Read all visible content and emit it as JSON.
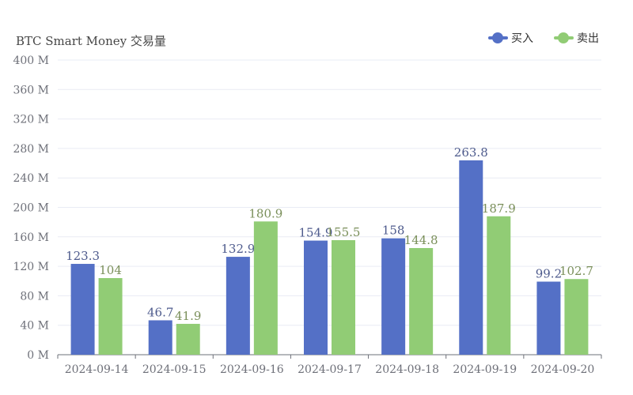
{
  "chart_data": {
    "type": "bar",
    "title": "BTC Smart Money 交易量",
    "categories": [
      "2024-09-14",
      "2024-09-15",
      "2024-09-16",
      "2024-09-17",
      "2024-09-18",
      "2024-09-19",
      "2024-09-20"
    ],
    "series": [
      {
        "name": "买入",
        "color": "#5470c6",
        "labelColor": "#4d5a8c",
        "values": [
          123.3,
          46.7,
          132.9,
          154.9,
          158,
          263.8,
          99.2
        ]
      },
      {
        "name": "卖出",
        "color": "#91cc75",
        "labelColor": "#7a8f5a",
        "values": [
          104,
          41.9,
          180.9,
          155.5,
          144.8,
          187.9,
          102.7
        ]
      }
    ],
    "ylim": [
      0,
      400
    ],
    "yticks": [
      0,
      40,
      80,
      120,
      160,
      200,
      240,
      280,
      320,
      360,
      400
    ],
    "ytick_labels": [
      "0 M",
      "40 M",
      "80 M",
      "120 M",
      "160 M",
      "200 M",
      "240 M",
      "280 M",
      "320 M",
      "360 M",
      "400 M"
    ],
    "grid": true,
    "legend": "top-right"
  }
}
